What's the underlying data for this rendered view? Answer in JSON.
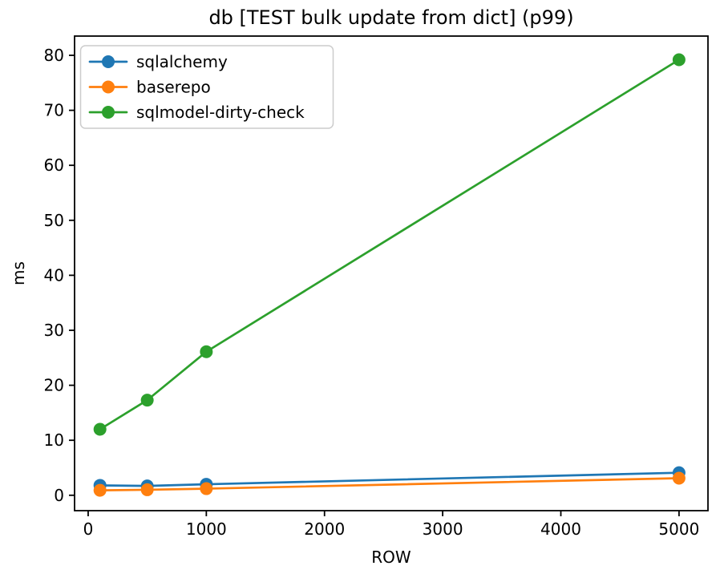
{
  "figure": {
    "background": "#ffffff",
    "text_color": "#000000"
  },
  "chart_data": {
    "type": "line",
    "title": "db [TEST bulk update from dict] (p99)",
    "xlabel": "ROW",
    "ylabel": "ms",
    "x": [
      100,
      500,
      1000,
      5000
    ],
    "series": [
      {
        "name": "sqlalchemy",
        "color": "#1f77b4",
        "values": [
          1.8,
          1.7,
          2.0,
          4.1
        ]
      },
      {
        "name": "baserepo",
        "color": "#ff7f0e",
        "values": [
          0.9,
          1.0,
          1.2,
          3.1
        ]
      },
      {
        "name": "sqlmodel-dirty-check",
        "color": "#2ca02c",
        "values": [
          12.0,
          17.3,
          26.1,
          79.2
        ]
      }
    ],
    "xticks": [
      0,
      1000,
      2000,
      3000,
      4000,
      5000
    ],
    "yticks": [
      0,
      10,
      20,
      30,
      40,
      50,
      60,
      70,
      80
    ],
    "xlim": [
      -115,
      5245
    ],
    "ylim": [
      -2.8,
      83.5
    ],
    "grid": false,
    "legend_position": "upper left",
    "marker": "circle",
    "axis_color": "#000000",
    "legend_border_color": "#cccccc",
    "legend_background": "#ffffff"
  }
}
